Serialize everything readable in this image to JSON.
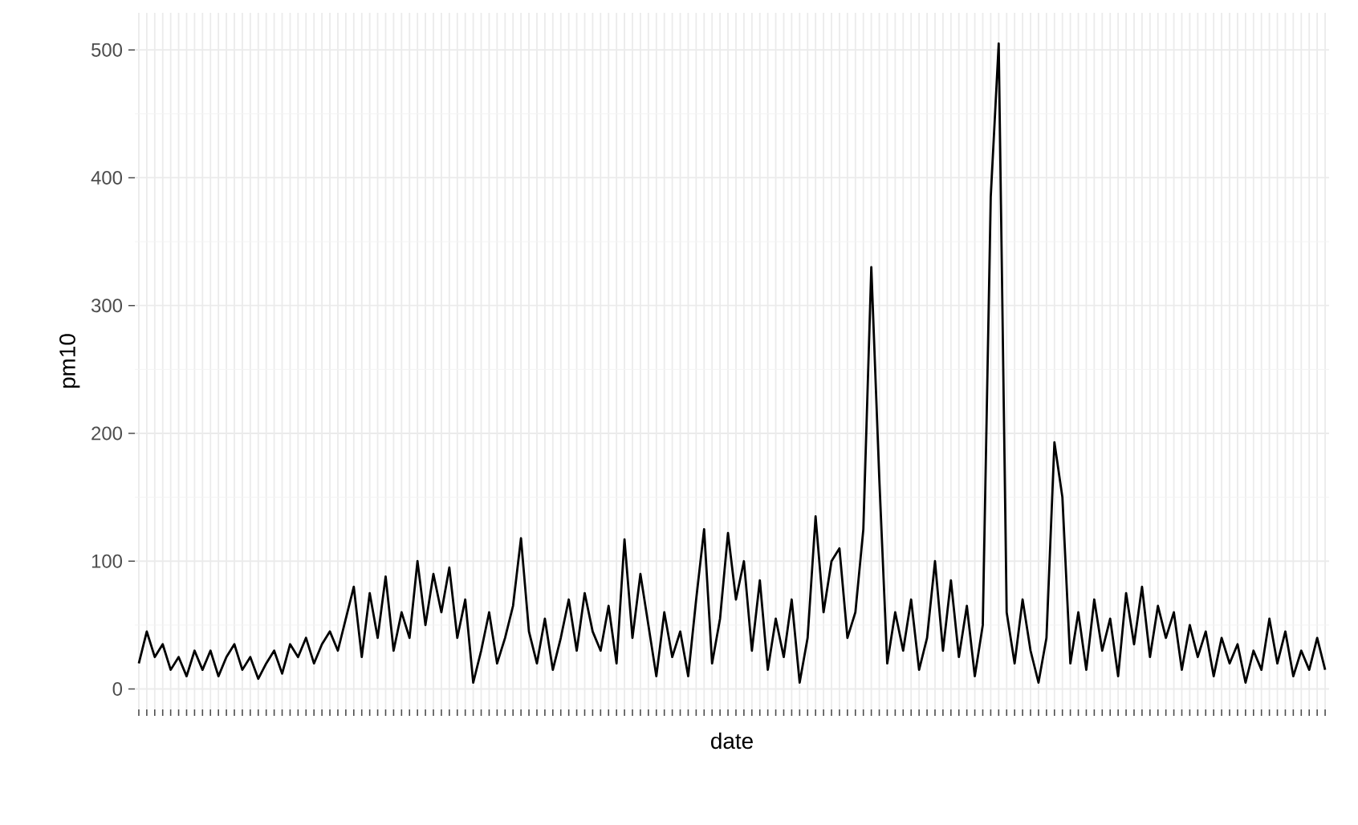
{
  "chart_data": {
    "type": "line",
    "xlabel": "date",
    "ylabel": "pm10",
    "categories": [
      null,
      null,
      null,
      null,
      null,
      null,
      null,
      null,
      null,
      null,
      null,
      null,
      null,
      null,
      null,
      null,
      null,
      null,
      null,
      null,
      null,
      null,
      null,
      null,
      null,
      null,
      null,
      null,
      null,
      null,
      null,
      null,
      null,
      null,
      null,
      null,
      null,
      null,
      null,
      null,
      null,
      null,
      null,
      null,
      null,
      null,
      null,
      null,
      null,
      null,
      null,
      null,
      null,
      null,
      null,
      null,
      null,
      null,
      null,
      null,
      null,
      null,
      null,
      null,
      null,
      null,
      null,
      null,
      null,
      null,
      null,
      null,
      null,
      null,
      null,
      null,
      null,
      null,
      null,
      null,
      null,
      null,
      null,
      null,
      null,
      null,
      null,
      null,
      null,
      null,
      null,
      null,
      null,
      null,
      null,
      null,
      null,
      null,
      null,
      null,
      null,
      null,
      null,
      null,
      null,
      null,
      null,
      null,
      null,
      null,
      null,
      null,
      null,
      null,
      null,
      null,
      null,
      null,
      null,
      null,
      null,
      null,
      null,
      null,
      null,
      null,
      null,
      null,
      null,
      null,
      null,
      null,
      null,
      null,
      null,
      null,
      null,
      null,
      null,
      null,
      null,
      null,
      null,
      null,
      null,
      null,
      null,
      null,
      null,
      null
    ],
    "series": [
      {
        "color": "#000000",
        "values": [
          20,
          45,
          25,
          35,
          15,
          25,
          10,
          30,
          15,
          30,
          10,
          25,
          35,
          15,
          25,
          8,
          20,
          30,
          12,
          35,
          25,
          40,
          20,
          35,
          45,
          30,
          55,
          80,
          25,
          75,
          40,
          88,
          30,
          60,
          40,
          100,
          50,
          90,
          60,
          95,
          40,
          70,
          5,
          30,
          60,
          20,
          40,
          65,
          118,
          45,
          20,
          55,
          15,
          40,
          70,
          30,
          75,
          45,
          30,
          65,
          20,
          117,
          40,
          90,
          50,
          10,
          60,
          25,
          45,
          10,
          70,
          125,
          20,
          55,
          122,
          70,
          100,
          30,
          85,
          15,
          55,
          25,
          70,
          5,
          40,
          135,
          60,
          100,
          110,
          40,
          60,
          125,
          330,
          165,
          20,
          60,
          30,
          70,
          15,
          40,
          100,
          30,
          85,
          25,
          65,
          10,
          50,
          385,
          505,
          60,
          20,
          70,
          30,
          5,
          40,
          193,
          150,
          20,
          60,
          15,
          70,
          30,
          55,
          10,
          75,
          35,
          80,
          25,
          65,
          40,
          60,
          15,
          50,
          25,
          45,
          10,
          40,
          20,
          35,
          5,
          30,
          15,
          55,
          20,
          45,
          10,
          30,
          15,
          40,
          15
        ]
      }
    ],
    "ylim": [
      -16,
      529
    ],
    "yticks": [
      0,
      100,
      200,
      300,
      400,
      500
    ],
    "grid": true,
    "marker": "none",
    "line_style": "solid"
  }
}
